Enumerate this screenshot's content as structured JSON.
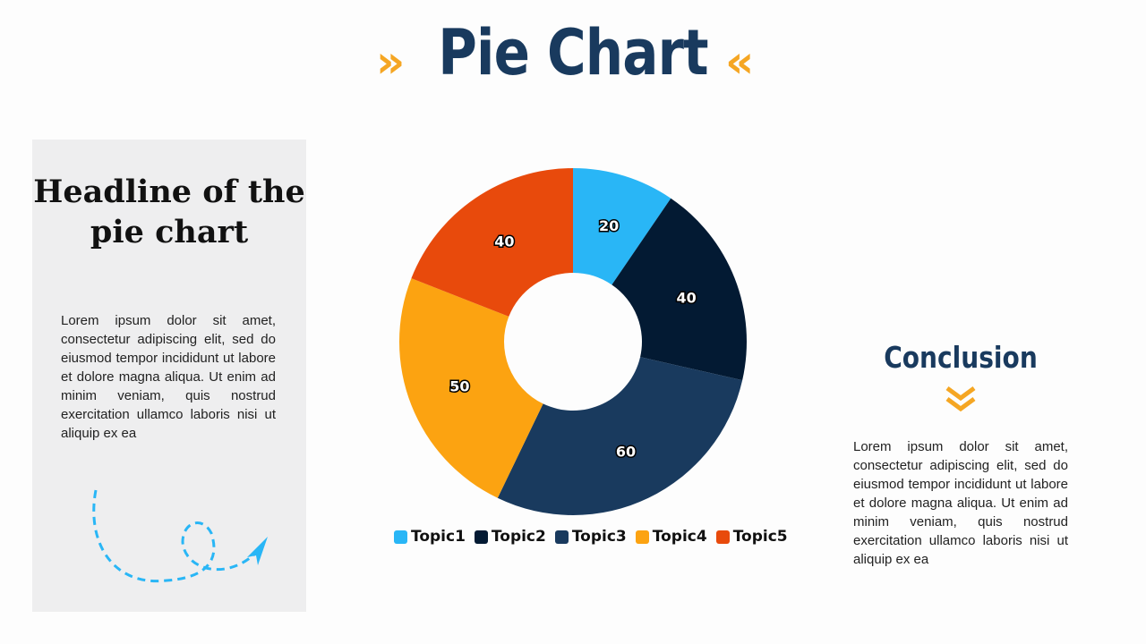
{
  "title": "Pie Chart",
  "left_panel": {
    "headline": "Headline of the pie chart",
    "body": "Lorem ipsum dolor sit amet, consectetur adipiscing elit, sed do eiusmod tempor incididunt ut labore et dolore magna aliqua. Ut enim ad minim veniam, quis nostrud exercitation ullamco laboris nisi ut aliquip ex ea"
  },
  "conclusion": {
    "heading": "Conclusion",
    "body": "Lorem ipsum dolor sit amet, consectetur adipiscing elit, sed do eiusmod tempor incididunt ut labore et dolore magna aliqua. Ut enim ad minim veniam, quis nostrud exercitation ullamco laboris nisi ut aliquip ex ea"
  },
  "accent_color": "#f5a623",
  "chart_data": {
    "type": "pie",
    "style": "donut",
    "categories": [
      "Topic1",
      "Topic2",
      "Topic3",
      "Topic4",
      "Topic5"
    ],
    "values": [
      20,
      40,
      60,
      50,
      40
    ],
    "data_labels": [
      "20",
      "40",
      "60",
      "50",
      "40"
    ],
    "colors": [
      "#29b6f6",
      "#031a33",
      "#193a5e",
      "#fca311",
      "#e84a0c"
    ],
    "legend_position": "bottom"
  }
}
